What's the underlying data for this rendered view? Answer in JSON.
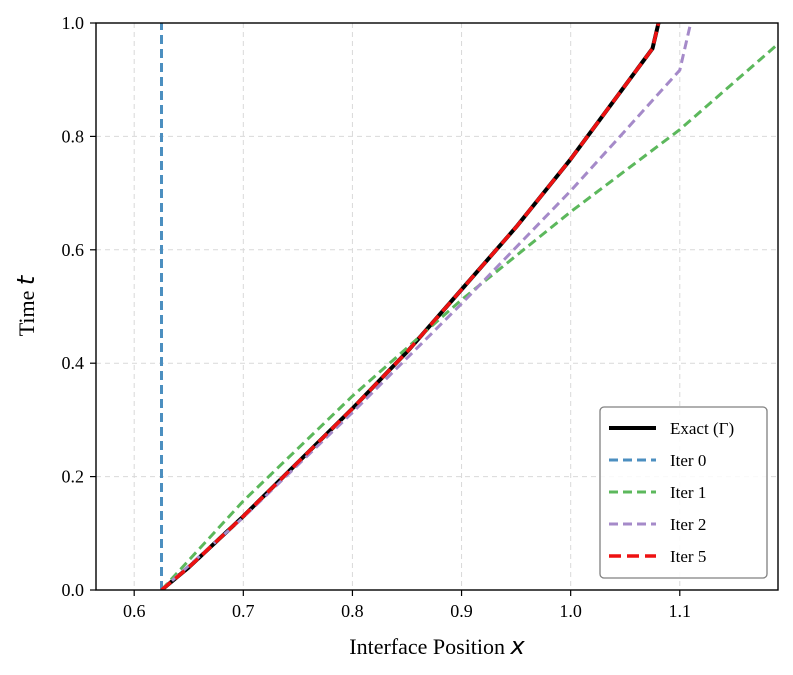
{
  "chart_data": {
    "type": "line",
    "title": "",
    "xlabel": "Interface Position",
    "xlabel_var": "x",
    "ylabel": "Time",
    "ylabel_var": "t",
    "xlim": [
      0.565,
      1.19
    ],
    "ylim": [
      0.0,
      1.0
    ],
    "x_ticks": [
      0.6,
      0.7,
      0.8,
      0.9,
      1.0,
      1.1
    ],
    "x_tick_labels": [
      "0.6",
      "0.7",
      "0.8",
      "0.9",
      "1.0",
      "1.1"
    ],
    "y_ticks": [
      0.0,
      0.2,
      0.4,
      0.6,
      0.8,
      1.0
    ],
    "y_tick_labels": [
      "0.0",
      "0.2",
      "0.4",
      "0.6",
      "0.8",
      "1.0"
    ],
    "grid": true,
    "legend_position": "lower-right",
    "series": [
      {
        "name": "Exact (Γ)",
        "color": "#000000",
        "style": "solid",
        "points": [
          [
            0.625,
            0.0
          ],
          [
            0.65,
            0.04
          ],
          [
            0.7,
            0.13
          ],
          [
            0.75,
            0.225
          ],
          [
            0.8,
            0.32
          ],
          [
            0.85,
            0.42
          ],
          [
            0.9,
            0.53
          ],
          [
            0.95,
            0.64
          ],
          [
            1.0,
            0.76
          ],
          [
            1.05,
            0.89
          ],
          [
            1.075,
            0.955
          ],
          [
            1.0805,
            1.0
          ]
        ]
      },
      {
        "name": "Iter 0",
        "color": "#4c8fc0",
        "style": "dashed",
        "points": [
          [
            0.625,
            0.0
          ],
          [
            0.625,
            1.0
          ]
        ]
      },
      {
        "name": "Iter 1",
        "color": "#5cb85c",
        "style": "dashed",
        "points": [
          [
            0.625,
            0.0
          ],
          [
            0.7,
            0.157
          ],
          [
            0.8,
            0.342
          ],
          [
            0.9,
            0.512
          ],
          [
            1.0,
            0.667
          ],
          [
            1.1,
            0.812
          ],
          [
            1.19,
            0.963
          ]
        ]
      },
      {
        "name": "Iter 2",
        "color": "#a58ac9",
        "style": "dashed",
        "points": [
          [
            0.625,
            0.0
          ],
          [
            0.7,
            0.128
          ],
          [
            0.8,
            0.313
          ],
          [
            0.9,
            0.505
          ],
          [
            1.0,
            0.704
          ],
          [
            1.05,
            0.81
          ],
          [
            1.1,
            0.917
          ],
          [
            1.11,
            1.0
          ]
        ]
      },
      {
        "name": "Iter 5",
        "color": "#ee1111",
        "style": "dashed",
        "points": [
          [
            0.625,
            0.0
          ],
          [
            0.65,
            0.04
          ],
          [
            0.7,
            0.13
          ],
          [
            0.75,
            0.225
          ],
          [
            0.8,
            0.32
          ],
          [
            0.85,
            0.42
          ],
          [
            0.9,
            0.53
          ],
          [
            0.95,
            0.64
          ],
          [
            1.0,
            0.76
          ],
          [
            1.05,
            0.89
          ],
          [
            1.075,
            0.955
          ],
          [
            1.0805,
            1.0
          ]
        ]
      }
    ],
    "legend_entries": [
      "Exact (Γ)",
      "Iter 0",
      "Iter 1",
      "Iter 2",
      "Iter 5"
    ]
  }
}
